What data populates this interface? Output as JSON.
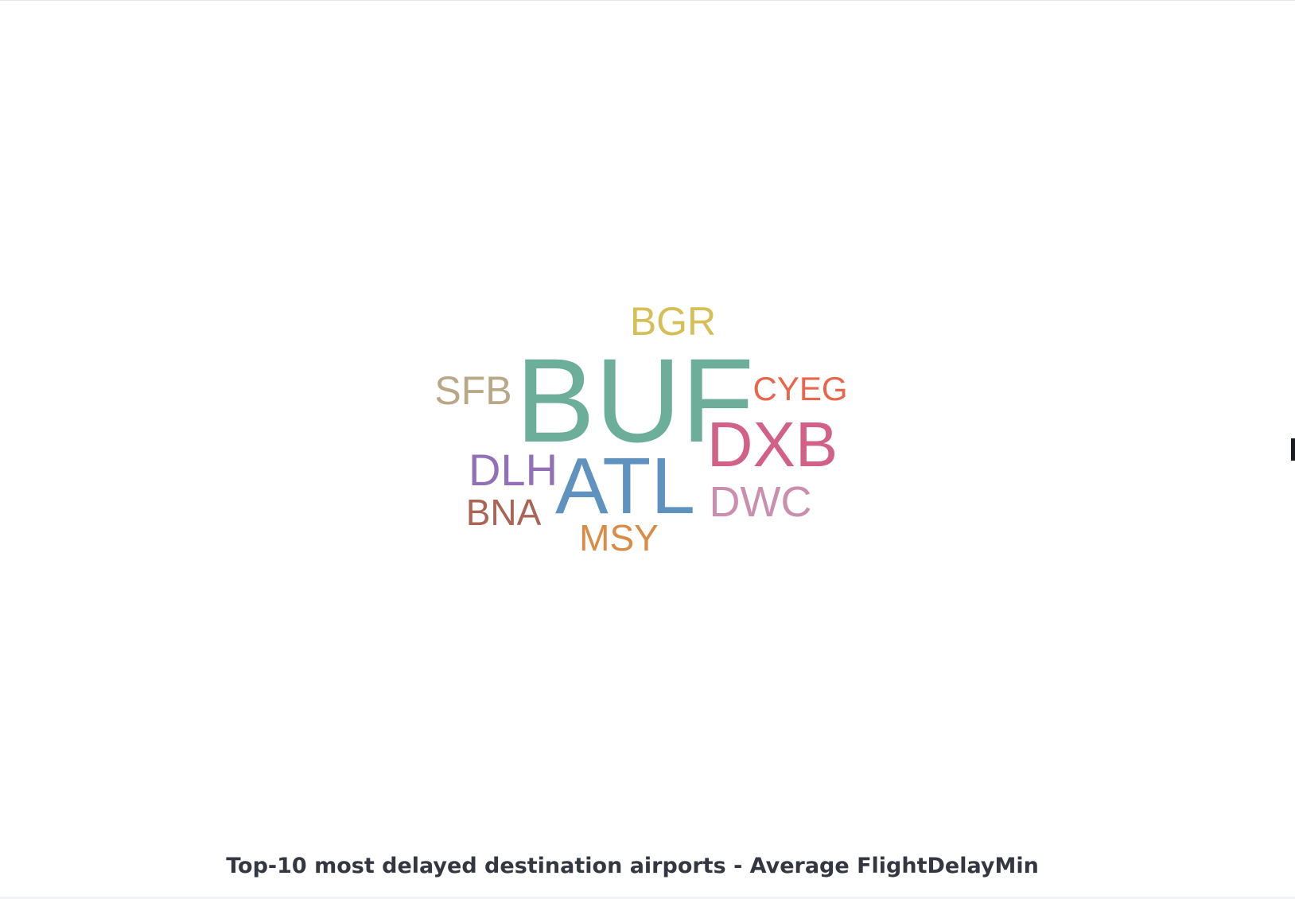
{
  "chart_data": {
    "type": "wordcloud",
    "metric": "Average FlightDelayMin",
    "words": [
      {
        "text": "BUF",
        "color": "#6dae9a",
        "rank": 1
      },
      {
        "text": "ATL",
        "color": "#6092c0",
        "rank": 2
      },
      {
        "text": "DXB",
        "color": "#d36086",
        "rank": 3
      },
      {
        "text": "DLH",
        "color": "#9170b8",
        "rank": 4
      },
      {
        "text": "DWC",
        "color": "#ca8eae",
        "rank": 5
      },
      {
        "text": "SFB",
        "color": "#b9a888",
        "rank": 6
      },
      {
        "text": "BGR",
        "color": "#d6bf57",
        "rank": 7
      },
      {
        "text": "BNA",
        "color": "#aa6556",
        "rank": 8
      },
      {
        "text": "MSY",
        "color": "#da8b45",
        "rank": 9
      },
      {
        "text": "CYEG",
        "color": "#e7664c",
        "rank": 10
      }
    ]
  },
  "caption": "Top-10 most delayed destination airports - Average FlightDelayMin"
}
